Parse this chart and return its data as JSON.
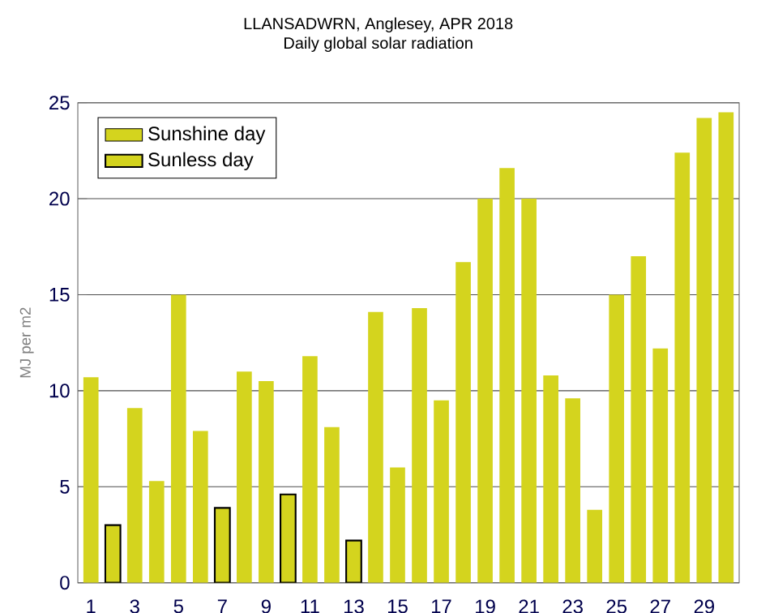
{
  "chart_data": {
    "type": "bar",
    "title": "LLANSADWRN, Anglesey, APR 2018",
    "subtitle": "Daily global solar radiation",
    "ylabel": "MJ per m2",
    "categories": [
      "1",
      null,
      "3",
      null,
      "5",
      null,
      "7",
      null,
      "9",
      null,
      "11",
      null,
      "13",
      null,
      "15",
      null,
      "17",
      null,
      "19",
      null,
      "21",
      null,
      "23",
      null,
      "25",
      null,
      "27",
      null,
      "29",
      null
    ],
    "series": [
      {
        "name": "Sunshine day",
        "color": "#d4d41e",
        "values": [
          10.7,
          null,
          9.1,
          5.3,
          15.0,
          7.9,
          null,
          11.0,
          10.5,
          null,
          11.8,
          8.1,
          null,
          14.1,
          6.0,
          14.3,
          9.5,
          16.7,
          20.0,
          21.6,
          20.0,
          10.8,
          9.6,
          3.8,
          15.0,
          17.0,
          12.2,
          22.4,
          24.2,
          24.5
        ]
      },
      {
        "name": "Sunless day",
        "color": "#d4d41e",
        "values": [
          null,
          3.0,
          null,
          null,
          null,
          null,
          3.9,
          null,
          null,
          4.6,
          null,
          null,
          2.2,
          null,
          null,
          null,
          null,
          null,
          null,
          null,
          null,
          null,
          null,
          null,
          null,
          null,
          null,
          null,
          null,
          null
        ]
      }
    ],
    "ylim": [
      0,
      25
    ],
    "yticks": [
      0,
      5,
      10,
      15,
      20,
      25
    ],
    "grid": "y",
    "legend": "top left"
  }
}
